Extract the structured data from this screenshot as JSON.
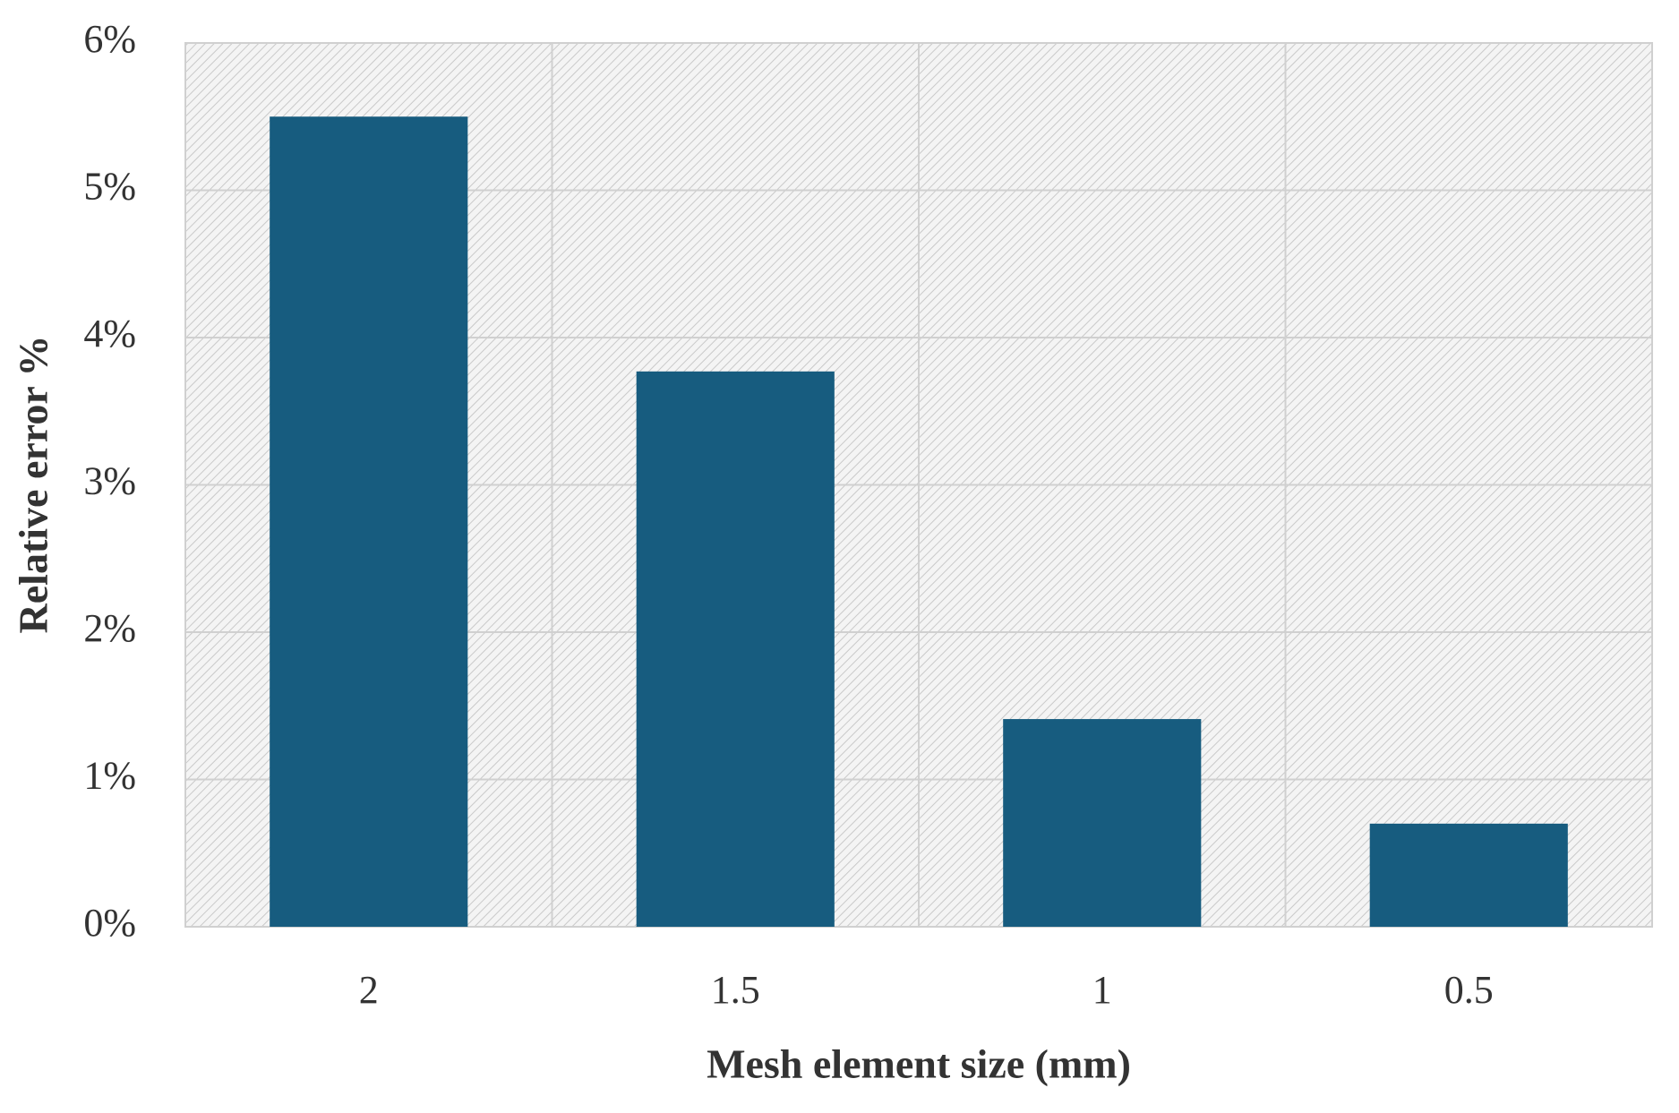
{
  "chart_data": {
    "type": "bar",
    "x_label": "Mesh element size (mm)",
    "y_label": "Relative error %",
    "categories": [
      "2",
      "1.5",
      "1",
      "0.5"
    ],
    "values": [
      5.5,
      3.77,
      1.41,
      0.7
    ],
    "color": "#175c7f",
    "ylim": [
      0,
      6
    ],
    "yticks": [
      {
        "value": 0,
        "label": "0%"
      },
      {
        "value": 1,
        "label": "1%"
      },
      {
        "value": 2,
        "label": "2%"
      },
      {
        "value": 3,
        "label": "3%"
      },
      {
        "value": 4,
        "label": "4%"
      },
      {
        "value": 5,
        "label": "5%"
      },
      {
        "value": 6,
        "label": "6%"
      }
    ],
    "grid": true
  }
}
